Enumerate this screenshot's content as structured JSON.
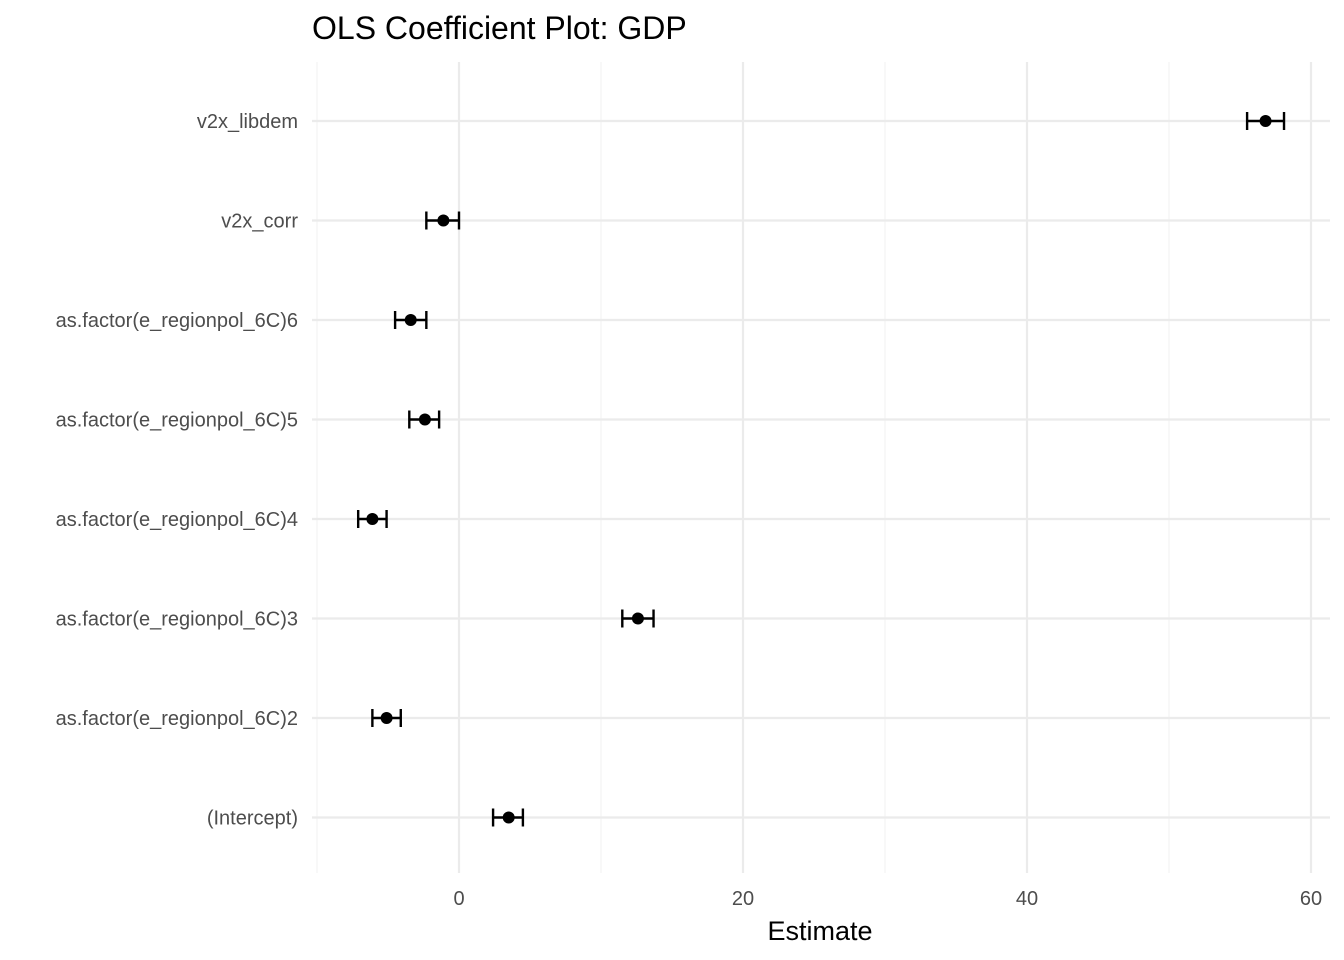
{
  "chart_data": {
    "type": "scatter",
    "subtype": "coefficient-plot-with-error-bars",
    "title": "OLS Coefficient Plot: GDP",
    "xlabel": "Estimate",
    "ylabel": "",
    "xlim": [
      -10,
      61
    ],
    "x_ticks": [
      0,
      20,
      40,
      60
    ],
    "x_minor_ticks": [
      -10,
      10,
      30,
      50
    ],
    "grid": true,
    "legend": "none",
    "categories": [
      "(Intercept)",
      "as.factor(e_regionpol_6C)2",
      "as.factor(e_regionpol_6C)3",
      "as.factor(e_regionpol_6C)4",
      "as.factor(e_regionpol_6C)5",
      "as.factor(e_regionpol_6C)6",
      "v2x_corr",
      "v2x_libdem"
    ],
    "estimates": [
      3.5,
      -5.1,
      12.6,
      -6.1,
      -2.4,
      -3.4,
      -1.1,
      56.8
    ],
    "ci_low": [
      2.4,
      -6.1,
      11.5,
      -7.1,
      -3.5,
      -4.5,
      -2.3,
      55.5
    ],
    "ci_high": [
      4.5,
      -4.1,
      13.7,
      -5.1,
      -1.4,
      -2.3,
      0.0,
      58.1
    ],
    "colors": {
      "point": "#000000",
      "errorbar": "#000000",
      "grid_major": "#ebebeb",
      "grid_minor": "#f5f5f5",
      "tick_text": "#4d4d4d"
    }
  }
}
